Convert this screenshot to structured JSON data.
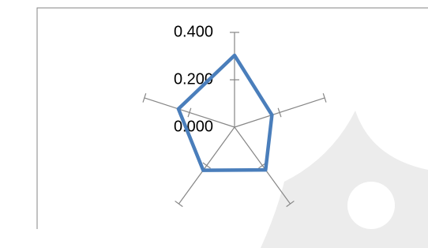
{
  "chart_data": {
    "type": "radar",
    "categories": [
      null,
      null,
      null,
      null,
      null
    ],
    "values": [
      0.303,
      0.166,
      0.223,
      0.225,
      0.249
    ],
    "color": "#4a7ebb",
    "rlim": [
      0,
      0.4
    ],
    "rticks": [
      {
        "value": 0,
        "label": "0.000"
      },
      {
        "value": 0.2,
        "label": "0.200"
      },
      {
        "value": 0.4,
        "label": "0.400"
      }
    ]
  }
}
